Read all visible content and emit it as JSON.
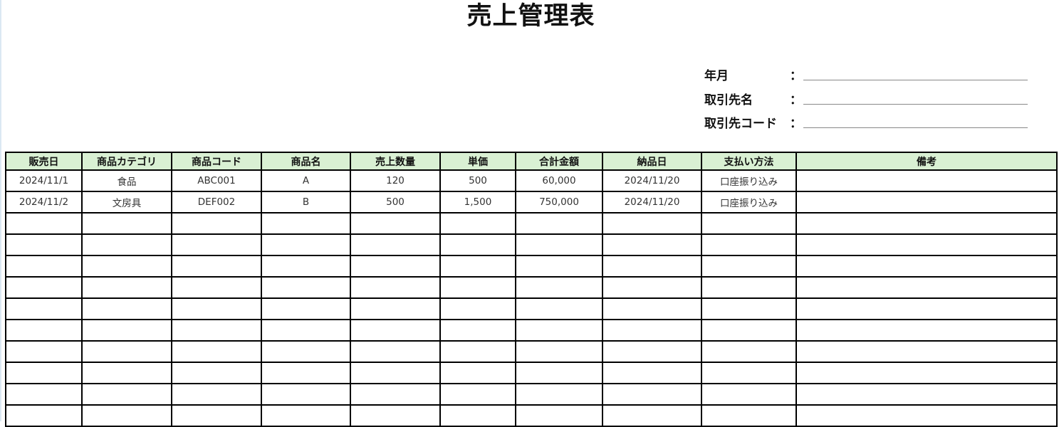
{
  "title": "売上管理表",
  "meta": [
    {
      "label": "年月",
      "colon": "：",
      "value": ""
    },
    {
      "label": "取引先名",
      "colon": "：",
      "value": ""
    },
    {
      "label": "取引先コード",
      "colon": "：",
      "value": ""
    }
  ],
  "table": {
    "header_color": "#d9f0d3",
    "columns": [
      "販売日",
      "商品カテゴリ",
      "商品コード",
      "商品名",
      "売上数量",
      "単価",
      "合計金額",
      "納品日",
      "支払い方法",
      "備考"
    ],
    "rows": [
      [
        "2024/11/1",
        "食品",
        "ABC001",
        "A",
        "120",
        "500",
        "60,000",
        "2024/11/20",
        "口座振り込み",
        ""
      ],
      [
        "2024/11/2",
        "文房具",
        "DEF002",
        "B",
        "500",
        "1,500",
        "750,000",
        "2024/11/20",
        "口座振り込み",
        ""
      ],
      [
        "",
        "",
        "",
        "",
        "",
        "",
        "",
        "",
        "",
        ""
      ],
      [
        "",
        "",
        "",
        "",
        "",
        "",
        "",
        "",
        "",
        ""
      ],
      [
        "",
        "",
        "",
        "",
        "",
        "",
        "",
        "",
        "",
        ""
      ],
      [
        "",
        "",
        "",
        "",
        "",
        "",
        "",
        "",
        "",
        ""
      ],
      [
        "",
        "",
        "",
        "",
        "",
        "",
        "",
        "",
        "",
        ""
      ],
      [
        "",
        "",
        "",
        "",
        "",
        "",
        "",
        "",
        "",
        ""
      ],
      [
        "",
        "",
        "",
        "",
        "",
        "",
        "",
        "",
        "",
        ""
      ],
      [
        "",
        "",
        "",
        "",
        "",
        "",
        "",
        "",
        "",
        ""
      ],
      [
        "",
        "",
        "",
        "",
        "",
        "",
        "",
        "",
        "",
        ""
      ],
      [
        "",
        "",
        "",
        "",
        "",
        "",
        "",
        "",
        "",
        ""
      ]
    ]
  }
}
